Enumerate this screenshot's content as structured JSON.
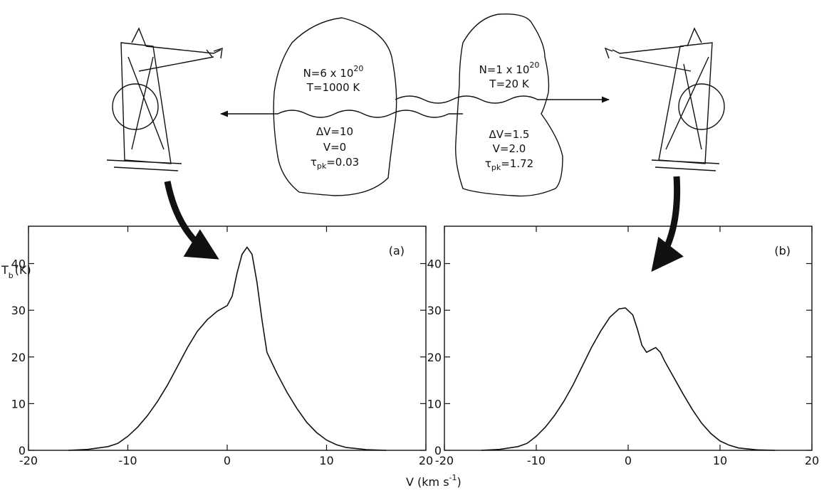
{
  "diagram": {
    "left_cloud": {
      "column": "N=6 x 10",
      "column_exp": "20",
      "temperature": "T=1000 K",
      "width": "ΔV=10",
      "velocity": "V=0",
      "tau": "τ",
      "tau_sub": "pk",
      "tau_value": "=0.03"
    },
    "right_cloud": {
      "column": "N=1 x 10",
      "column_exp": "20",
      "temperature": "T=20 K",
      "width": "ΔV=1.5",
      "velocity": "V=2.0",
      "tau": "τ",
      "tau_sub": "pk",
      "tau_value": "=1.72"
    }
  },
  "axis_labels": {
    "y_main": "T",
    "y_sub": "b",
    "y_unit": "(K)",
    "x_main": "V (km s",
    "x_exp": "-1",
    "x_close": ")"
  },
  "chart_data": [
    {
      "type": "line",
      "panel_label": "(a)",
      "color": "#111111",
      "x": [
        -16,
        -14,
        -12,
        -11,
        -10,
        -9,
        -8,
        -7,
        -6,
        -5,
        -4,
        -3,
        -2,
        -1,
        0,
        0.5,
        1,
        1.5,
        2,
        2.5,
        3,
        3.5,
        4,
        5,
        6,
        7,
        8,
        9,
        10,
        11,
        12,
        14,
        16
      ],
      "values": [
        0,
        0.2,
        0.8,
        1.5,
        3,
        5,
        7.5,
        10.5,
        14,
        18,
        22,
        25.5,
        28,
        29.8,
        31,
        33,
        38,
        42,
        43.5,
        42,
        36,
        28,
        21,
        16.5,
        12.5,
        9,
        6,
        3.8,
        2.2,
        1.2,
        0.6,
        0.15,
        0
      ],
      "xlim": [
        -20,
        20
      ],
      "ylim": [
        0,
        48
      ],
      "xticks": [
        -20,
        -10,
        0,
        10,
        20
      ],
      "yticks": [
        0,
        10,
        20,
        30,
        40
      ]
    },
    {
      "type": "line",
      "panel_label": "(b)",
      "color": "#111111",
      "x": [
        -16,
        -14,
        -12,
        -11,
        -10,
        -9,
        -8,
        -7,
        -6,
        -5,
        -4,
        -3,
        -2,
        -1,
        -0.3,
        0.5,
        1,
        1.5,
        2,
        2.5,
        3,
        3.5,
        4,
        5,
        6,
        7,
        8,
        9,
        10,
        11,
        12,
        14,
        16
      ],
      "values": [
        0,
        0.2,
        0.8,
        1.5,
        3,
        5,
        7.5,
        10.5,
        14,
        18,
        22,
        25.5,
        28.5,
        30.3,
        30.5,
        29,
        26,
        22.5,
        21,
        21.5,
        22,
        21,
        19,
        15.5,
        12,
        8.7,
        5.8,
        3.6,
        2,
        1.1,
        0.5,
        0.1,
        0
      ],
      "xlim": [
        -20,
        20
      ],
      "ylim": [
        0,
        48
      ],
      "xticks": [
        -20,
        -10,
        0,
        10,
        20
      ],
      "yticks": [
        0,
        10,
        20,
        30,
        40
      ]
    }
  ]
}
